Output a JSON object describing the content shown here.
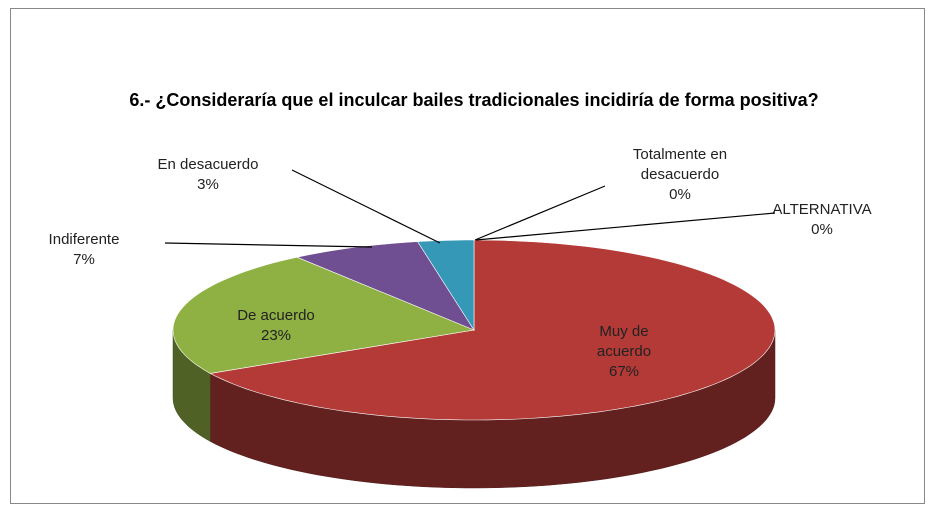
{
  "chart_data": {
    "type": "pie3d",
    "title": "6.- ¿Consideraría que el inculcar bailes tradicionales incidiría de forma positiva?",
    "categories": [
      "ALTERNATIVA",
      "Totalmente en desacuerdo",
      "Muy de acuerdo",
      "De acuerdo",
      "Indiferente",
      "En desacuerdo"
    ],
    "values": [
      0,
      0,
      67,
      23,
      7,
      3
    ],
    "value_labels": [
      "0%",
      "0%",
      "67%",
      "23%",
      "7%",
      "3%"
    ],
    "colors": [
      "#4f81bd",
      "#f79646",
      "#b33a36",
      "#8fb143",
      "#6f4f91",
      "#3598b7"
    ]
  }
}
